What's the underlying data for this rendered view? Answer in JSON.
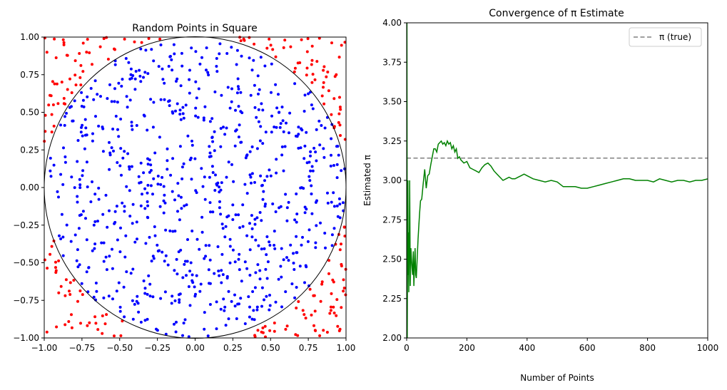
{
  "chart_data": [
    {
      "type": "scatter",
      "title": "Random Points in Square",
      "xlabel": "",
      "ylabel": "",
      "xlim": [
        -1,
        1
      ],
      "ylim": [
        -1,
        1
      ],
      "xticks": [
        "−1.00",
        "−0.75",
        "−0.50",
        "−0.25",
        "0.00",
        "0.25",
        "0.50",
        "0.75",
        "1.00"
      ],
      "yticks": [
        "−1.00",
        "−0.75",
        "−0.50",
        "−0.25",
        "0.00",
        "0.25",
        "0.50",
        "0.75",
        "1.00"
      ],
      "xtick_values": [
        -1,
        -0.75,
        -0.5,
        -0.25,
        0,
        0.25,
        0.5,
        0.75,
        1
      ],
      "ytick_values": [
        -1,
        -0.75,
        -0.5,
        -0.25,
        0,
        0.25,
        0.5,
        0.75,
        1
      ],
      "n_points": 1000,
      "points_inside_circle": 751,
      "inside_color": "#0000ff",
      "outside_color": "#ff0000",
      "circle": {
        "center": [
          0,
          0
        ],
        "radius": 1,
        "color": "#000000"
      },
      "grid": false
    },
    {
      "type": "line",
      "title": "Convergence of π Estimate",
      "xlabel": "Number of Points",
      "ylabel": "Estimated π",
      "xlim": [
        0,
        1000
      ],
      "ylim": [
        2.0,
        4.0
      ],
      "xticks": [
        "0",
        "200",
        "400",
        "600",
        "800",
        "1000"
      ],
      "yticks": [
        "2.00",
        "2.25",
        "2.50",
        "2.75",
        "3.00",
        "3.25",
        "3.50",
        "3.75",
        "4.00"
      ],
      "xtick_values": [
        0,
        200,
        400,
        600,
        800,
        1000
      ],
      "ytick_values": [
        2.0,
        2.25,
        2.5,
        2.75,
        3.0,
        3.25,
        3.5,
        3.75,
        4.0
      ],
      "series": [
        {
          "color": "#008000",
          "x": [
            1,
            2,
            3,
            4,
            5,
            6,
            7,
            8,
            9,
            10,
            12,
            14,
            16,
            18,
            20,
            22,
            24,
            26,
            28,
            30,
            32,
            35,
            38,
            40,
            43,
            46,
            50,
            55,
            60,
            65,
            70,
            75,
            80,
            85,
            90,
            95,
            100,
            105,
            110,
            115,
            120,
            125,
            130,
            135,
            140,
            145,
            150,
            155,
            160,
            165,
            170,
            175,
            180,
            190,
            200,
            210,
            220,
            230,
            240,
            250,
            260,
            270,
            280,
            290,
            300,
            310,
            320,
            330,
            340,
            350,
            360,
            370,
            380,
            390,
            400,
            420,
            440,
            460,
            480,
            500,
            520,
            540,
            560,
            580,
            600,
            620,
            640,
            660,
            680,
            700,
            720,
            740,
            760,
            780,
            800,
            820,
            840,
            860,
            880,
            900,
            920,
            940,
            960,
            980,
            1000
          ],
          "y": [
            4.0,
            2.0,
            2.67,
            3.0,
            2.4,
            2.67,
            2.29,
            2.5,
            2.67,
            3.0,
            2.33,
            2.57,
            2.5,
            2.44,
            2.4,
            2.55,
            2.33,
            2.46,
            2.57,
            2.4,
            2.38,
            2.51,
            2.63,
            2.7,
            2.79,
            2.87,
            2.88,
            2.98,
            3.07,
            2.95,
            3.03,
            3.04,
            3.1,
            3.15,
            3.2,
            3.2,
            3.18,
            3.23,
            3.24,
            3.25,
            3.23,
            3.24,
            3.22,
            3.25,
            3.23,
            3.24,
            3.2,
            3.22,
            3.18,
            3.2,
            3.14,
            3.15,
            3.13,
            3.11,
            3.12,
            3.08,
            3.07,
            3.06,
            3.05,
            3.08,
            3.1,
            3.11,
            3.09,
            3.06,
            3.04,
            3.02,
            3.0,
            3.01,
            3.02,
            3.01,
            3.01,
            3.02,
            3.03,
            3.04,
            3.03,
            3.01,
            3.0,
            2.99,
            3.0,
            2.99,
            2.96,
            2.96,
            2.96,
            2.95,
            2.95,
            2.96,
            2.97,
            2.98,
            2.99,
            3.0,
            3.01,
            3.01,
            3.0,
            3.0,
            3.0,
            2.99,
            3.01,
            3.0,
            2.99,
            3.0,
            3.0,
            2.99,
            3.0,
            3.0,
            3.01
          ]
        }
      ],
      "reference_line": {
        "label": "π (true)",
        "y": 3.14159,
        "color": "#808080",
        "style": "dashed"
      },
      "legend_position": "top-right",
      "grid": false
    }
  ]
}
